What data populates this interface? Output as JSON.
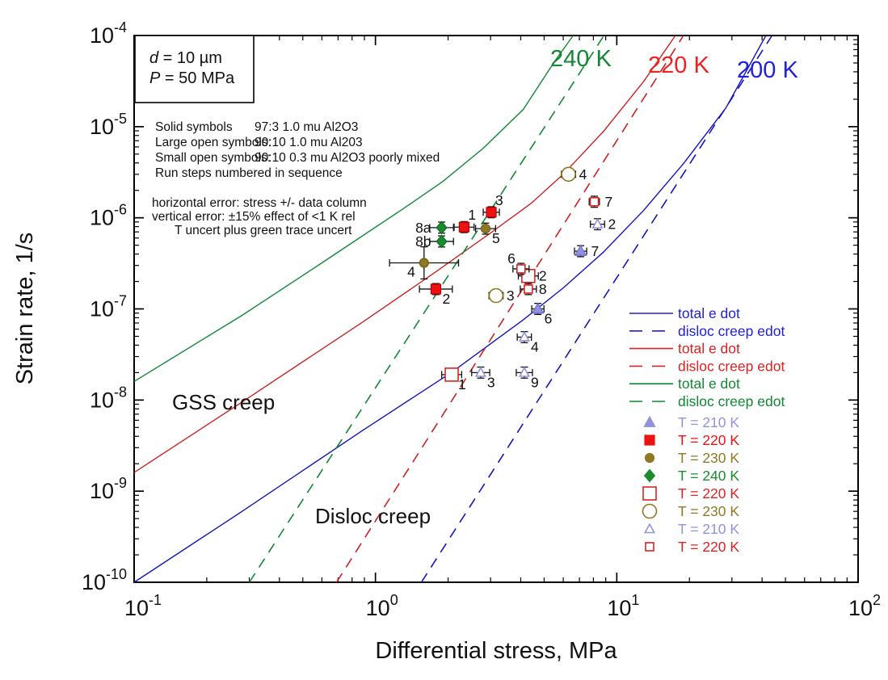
{
  "figure": {
    "background": "#ffffff",
    "frame_color": "#000000"
  },
  "annotation_box": {
    "lines": [
      "d = 10 µm",
      "P = 50 MPa"
    ]
  },
  "info_block": {
    "symbol_rows": [
      {
        "label": "Solid symbols",
        "value": "97:3 1.0 mu Al2O3"
      },
      {
        "label": "Large open symbols:",
        "value": "90:10 1.0 mu Al203"
      },
      {
        "label": "Small open symbols:",
        "value": "90:10 0.3 mu Al2O3 poorly mixed"
      },
      {
        "label": "Run steps numbered in sequence",
        "value": ""
      }
    ],
    "error_rows": [
      "horizontal error: stress +/- data column",
      "vertical error: ±15% effect of <1 K rel",
      "T uncert plus green trace uncert"
    ]
  },
  "region_labels": {
    "gss": "GSS creep",
    "disloc": "Disloc creep"
  },
  "curve_labels": [
    {
      "text": "240 K",
      "color": "#118833"
    },
    {
      "text": "220 K",
      "color": "#ee2222"
    },
    {
      "text": "200 K",
      "color": "#2222dd"
    }
  ],
  "legend": {
    "line_entries": [
      {
        "label": "total e dot",
        "color": "#2222cc",
        "dash": false
      },
      {
        "label": "disloc creep edot",
        "color": "#2222cc",
        "dash": true
      },
      {
        "label": "total e dot",
        "color": "#dd2222",
        "dash": false
      },
      {
        "label": "disloc creep edot",
        "color": "#dd2222",
        "dash": true
      },
      {
        "label": "total e dot",
        "color": "#118833",
        "dash": false
      },
      {
        "label": "disloc creep edot",
        "color": "#118833",
        "dash": true
      }
    ],
    "symbol_entries": [
      {
        "label": "T = 210 K",
        "marker": "triangle-filled",
        "color": "#9191e0"
      },
      {
        "label": "T = 220 K",
        "marker": "square-filled",
        "color": "#ee1111"
      },
      {
        "label": "T = 230 K",
        "marker": "circle-filled",
        "color": "#8e7822"
      },
      {
        "label": "T = 240 K",
        "marker": "diamond-filled",
        "color": "#1a8c2e"
      },
      {
        "label": "T = 220 K",
        "marker": "square-open-large",
        "color": "#dd2222"
      },
      {
        "label": "T = 230 K",
        "marker": "circle-open-large",
        "color": "#8e7822"
      },
      {
        "label": "T = 210 K",
        "marker": "triangle-open-small",
        "color": "#9191e0"
      },
      {
        "label": "T = 220 K",
        "marker": "square-open-small",
        "color": "#dd2222"
      }
    ]
  },
  "chart_data": {
    "type": "scatter",
    "xlabel": "Differential stress, MPa",
    "ylabel": "Strain rate, 1/s",
    "xlim": [
      0.1,
      100
    ],
    "ylim": [
      1e-10,
      0.0001
    ],
    "x_scale": "log",
    "y_scale": "log",
    "x_tick_exponents": [
      -1,
      0,
      1,
      2
    ],
    "y_tick_exponents": [
      -4,
      -5,
      -6,
      -7,
      -8,
      -9,
      -10
    ],
    "grid": false,
    "legend_position": "right-middle",
    "curves": [
      {
        "name": "total e dot",
        "temperature_k": 200,
        "style": "solid",
        "color": "#1515bb",
        "points": [
          [
            0.1,
            1e-10
          ],
          [
            0.28,
            6e-10
          ],
          [
            0.88,
            4.6e-09
          ],
          [
            2.06,
            2e-08
          ],
          [
            4.1,
            7.6e-08
          ],
          [
            6.0,
            1.7e-07
          ],
          [
            8.8,
            4.2e-07
          ],
          [
            12.9,
            1.2e-06
          ],
          [
            19.0,
            4e-06
          ],
          [
            28.3,
            1.6e-05
          ],
          [
            41.5,
            0.0001
          ]
        ]
      },
      {
        "name": "disloc creep edot",
        "temperature_k": 200,
        "style": "dashed",
        "color": "#1515bb",
        "points": [
          [
            1.55,
            1e-10
          ],
          [
            44.0,
            0.0001
          ]
        ]
      },
      {
        "name": "total e dot",
        "temperature_k": 220,
        "style": "solid",
        "color": "#cc2222",
        "points": [
          [
            0.1,
            1.6e-09
          ],
          [
            0.28,
            9.5e-09
          ],
          [
            0.88,
            7.1e-08
          ],
          [
            1.76,
            2.5e-07
          ],
          [
            3.02,
            6.9e-07
          ],
          [
            4.43,
            1.45e-06
          ],
          [
            6.0,
            3e-06
          ],
          [
            8.85,
            9e-06
          ],
          [
            13.0,
            3.2e-05
          ],
          [
            17.5,
            0.0001
          ]
        ]
      },
      {
        "name": "disloc creep edot",
        "temperature_k": 220,
        "style": "dashed",
        "color": "#cc2222",
        "points": [
          [
            0.69,
            1e-10
          ],
          [
            18.9,
            0.0001
          ]
        ]
      },
      {
        "name": "total e dot",
        "temperature_k": 240,
        "style": "solid",
        "color": "#118833",
        "points": [
          [
            0.1,
            1.6e-08
          ],
          [
            0.28,
            8.5e-08
          ],
          [
            0.6,
            3.2e-07
          ],
          [
            1.3,
            1.25e-06
          ],
          [
            1.9,
            2.5e-06
          ],
          [
            2.8,
            5.8e-06
          ],
          [
            4.1,
            1.55e-05
          ],
          [
            5.55,
            5.3e-05
          ],
          [
            6.6,
            0.0001
          ]
        ]
      },
      {
        "name": "disloc creep edot",
        "temperature_k": 240,
        "style": "dashed",
        "color": "#118833",
        "points": [
          [
            0.3,
            1e-10
          ],
          [
            8.85,
            0.0001
          ]
        ]
      }
    ],
    "series": [
      {
        "name": "97:3 1.0 mu Al2O3, T = 240 K",
        "marker": "diamond-filled",
        "color": "#1a8c2e",
        "edge": "#0a6a20",
        "points": [
          {
            "label": "8a",
            "stress": 1.88,
            "rate": 7.8e-07,
            "xerr_pct": 12,
            "yerr_pct": 15,
            "label_pos": "left"
          },
          {
            "label": "8b",
            "stress": 1.88,
            "rate": 5.5e-07,
            "xerr_pct": 12,
            "yerr_pct": 15,
            "label_pos": "left"
          }
        ]
      },
      {
        "name": "97:3 1.0 mu Al2O3, T = 220 K",
        "marker": "square-filled",
        "color": "#ee1111",
        "edge": "#bb0000",
        "points": [
          {
            "label": "1",
            "stress": 2.33,
            "rate": 7.9e-07,
            "xerr_pct": 10,
            "yerr_pct": 15,
            "label_pos": "above-right"
          },
          {
            "label": "3",
            "stress": 3.02,
            "rate": 1.15e-06,
            "xerr_pct": 8,
            "yerr_pct": 15,
            "label_pos": "above-right"
          },
          {
            "label": "2",
            "stress": 1.78,
            "rate": 1.65e-07,
            "xerr_pct": 17,
            "yerr_pct": 15,
            "label_pos": "below-right"
          }
        ]
      },
      {
        "name": "97:3 1.0 mu Al2O3, T = 230 K",
        "marker": "circle-filled",
        "color": "#8e7822",
        "edge": "#6e5c12",
        "points": [
          {
            "label": "5",
            "stress": 2.86,
            "rate": 7.6e-07,
            "xerr_pct": 10,
            "yerr_pct": 15,
            "label_pos": "below-right"
          },
          {
            "label": "4",
            "stress": 1.59,
            "rate": 3.2e-07,
            "xerr_pct": 39,
            "yerr_pct": 50,
            "label_pos": "below-left"
          }
        ]
      },
      {
        "name": "97:3 1.0 mu Al2O3, T = 210 K",
        "marker": "triangle-filled",
        "color": "#9191e0",
        "edge": "#6b6bd0",
        "points": [
          {
            "label": "6",
            "stress": 4.71,
            "rate": 1e-07,
            "xerr_pct": 6,
            "yerr_pct": 15,
            "label_pos": "below-right"
          },
          {
            "label": "7",
            "stress": 7.08,
            "rate": 4.3e-07,
            "xerr_pct": 6,
            "yerr_pct": 15,
            "label_pos": "right"
          }
        ]
      },
      {
        "name": "90:10 1.0 mu Al203, T = 220 K",
        "marker": "square-open-large",
        "color": "#dd2222",
        "edge": "#dd2222",
        "points": [
          {
            "label": "1",
            "stress": 2.07,
            "rate": 1.9e-08,
            "xerr_pct": 10,
            "yerr_pct": 15,
            "label_pos": "below-right"
          },
          {
            "label": "2",
            "stress": 4.3,
            "rate": 2.3e-07,
            "xerr_pct": 10,
            "yerr_pct": 15,
            "label_pos": "right"
          }
        ]
      },
      {
        "name": "90:10 1.0 mu Al203, T = 230 K",
        "marker": "circle-open-large",
        "color": "#8e7822",
        "edge": "#8e7822",
        "points": [
          {
            "label": "3",
            "stress": 3.16,
            "rate": 1.4e-07,
            "xerr_pct": 7,
            "yerr_pct": 15,
            "label_pos": "right"
          },
          {
            "label": "4",
            "stress": 6.31,
            "rate": 3e-06,
            "xerr_pct": 7,
            "yerr_pct": 12,
            "label_pos": "right"
          }
        ]
      },
      {
        "name": "90:10 0.3 mu Al2O3 poorly mixed, T = 210 K",
        "marker": "triangle-open-small",
        "color": "#9191e0",
        "edge": "#9191e0",
        "points": [
          {
            "label": "3",
            "stress": 2.73,
            "rate": 2e-08,
            "xerr_pct": 9,
            "yerr_pct": 15,
            "label_pos": "below-right"
          },
          {
            "label": "9",
            "stress": 4.14,
            "rate": 2e-08,
            "xerr_pct": 8,
            "yerr_pct": 15,
            "label_pos": "below-right"
          },
          {
            "label": "4",
            "stress": 4.14,
            "rate": 4.9e-08,
            "xerr_pct": 7,
            "yerr_pct": 15,
            "label_pos": "below-right"
          },
          {
            "label": "2",
            "stress": 8.32,
            "rate": 8.5e-07,
            "xerr_pct": 7,
            "yerr_pct": 15,
            "label_pos": "right"
          }
        ]
      },
      {
        "name": "90:10 0.3 mu Al2O3 poorly mixed, T = 220 K",
        "marker": "square-open-small",
        "color": "#dd2222",
        "edge": "#dd2222",
        "points": [
          {
            "label": "6",
            "stress": 4.01,
            "rate": 2.75e-07,
            "xerr_pct": 8,
            "yerr_pct": 15,
            "label_pos": "above-left"
          },
          {
            "label": "8",
            "stress": 4.3,
            "rate": 1.65e-07,
            "xerr_pct": 8,
            "yerr_pct": 15,
            "label_pos": "right"
          },
          {
            "label": "7",
            "stress": 8.07,
            "rate": 1.5e-06,
            "xerr_pct": 5,
            "yerr_pct": 15,
            "label_pos": "right"
          }
        ]
      }
    ]
  }
}
